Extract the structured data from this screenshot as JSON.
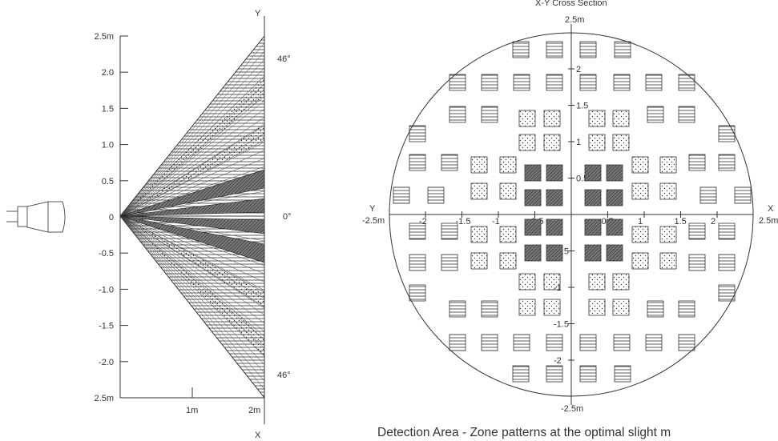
{
  "side_view": {
    "axis_y_label": "Y",
    "axis_x_label": "X",
    "y_ticks": [
      "2.5m",
      "2.0",
      "1.5",
      "1.0",
      "0.5",
      "0",
      "-0.5",
      "-1.0",
      "-1.5",
      "-2.0",
      "2.5m"
    ],
    "x_ticks": [
      "1m",
      "2m"
    ],
    "angle_top": "46°",
    "angle_mid": "0°",
    "angle_bottom": "46°"
  },
  "cross_section": {
    "title": "X-Y Cross Section",
    "axis_left_y": "Y",
    "axis_left_val": "-2.5m",
    "axis_right_x": "X",
    "axis_right_val": "2.5m",
    "top_val": "2.5m",
    "bottom_val": "-2.5m",
    "x_ticks": [
      "-2",
      "-1.5",
      "-1",
      "-0.5",
      "0.5",
      "1",
      "1.5",
      "2"
    ],
    "y_ticks": [
      "2",
      "1.5",
      "1",
      "0.5",
      "-0.5",
      "-1",
      "-1.5",
      "-2"
    ]
  },
  "caption": "Detection Area - Zone patterns at the optimal slight m"
}
